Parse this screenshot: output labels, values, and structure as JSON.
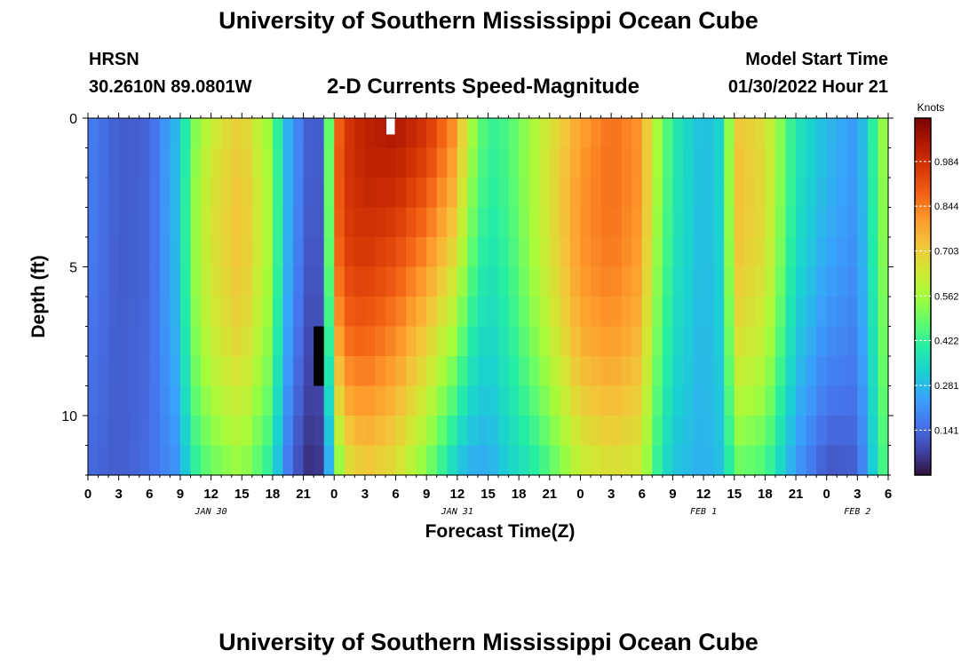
{
  "page": {
    "title": "University of Southern Mississippi Ocean Cube",
    "footer_title": "University of Southern Mississippi Ocean Cube",
    "station": "HRSN",
    "coords": "30.2610N  89.0801W",
    "subtitle": "2-D Currents Speed-Magnitude",
    "model_label": "Model Start Time",
    "model_time": "01/30/2022 Hour 21"
  },
  "colors": {
    "ramp": [
      "#30123b",
      "#4145ab",
      "#4675ed",
      "#39a2fc",
      "#1bcfd4",
      "#24eca6",
      "#61fc6c",
      "#a4fc3b",
      "#d1e834",
      "#f3c63a",
      "#fe9b2d",
      "#f36315",
      "#d93806",
      "#b11901",
      "#7a0402"
    ]
  },
  "chart_data": {
    "type": "heatmap",
    "title": "2-D Currents Speed-Magnitude",
    "xlabel": "Forecast Time(Z)",
    "ylabel": "Depth (ft)",
    "colorbar_label": "Knots",
    "color_range": [
      0.0,
      1.12
    ],
    "colorbar_ticks": [
      0.141,
      0.281,
      0.422,
      0.562,
      0.703,
      0.844,
      0.984
    ],
    "y_range": [
      0,
      12
    ],
    "y_ticks": [
      0,
      5,
      10
    ],
    "x_range_hours": [
      0,
      78
    ],
    "x_tick_hours": [
      0,
      3,
      6,
      9,
      12,
      15,
      18,
      21,
      24,
      27,
      30,
      33,
      36,
      39,
      42,
      45,
      48,
      51,
      54,
      57,
      60,
      63,
      66,
      69,
      72,
      75,
      78
    ],
    "x_tick_labels": [
      "0",
      "3",
      "6",
      "9",
      "12",
      "15",
      "18",
      "21",
      "0",
      "3",
      "6",
      "9",
      "12",
      "15",
      "18",
      "21",
      "0",
      "3",
      "6",
      "9",
      "12",
      "15",
      "18",
      "21",
      "0",
      "3",
      "6"
    ],
    "date_labels": [
      {
        "text": "JAN 30",
        "hour": 12
      },
      {
        "text": "JAN 31",
        "hour": 36
      },
      {
        "text": "FEB 1",
        "hour": 60
      },
      {
        "text": "FEB 2",
        "hour": 75
      }
    ],
    "time_step_hours": 1,
    "depth_rows": 12,
    "profile_times": [
      0,
      3,
      6,
      9,
      10,
      12,
      15,
      18,
      19,
      21,
      22,
      23,
      24,
      25,
      27,
      30,
      33,
      36,
      37,
      39,
      41,
      44,
      48,
      51,
      54,
      55,
      57,
      60,
      62,
      63,
      66,
      69,
      72,
      75,
      78
    ],
    "surface_speed": [
      0.18,
      0.12,
      0.13,
      0.3,
      0.48,
      0.62,
      0.7,
      0.52,
      0.3,
      0.15,
      0.1,
      0.14,
      0.82,
      0.95,
      1.02,
      1.05,
      0.98,
      0.8,
      0.6,
      0.42,
      0.45,
      0.6,
      0.78,
      0.86,
      0.8,
      0.62,
      0.4,
      0.28,
      0.35,
      0.72,
      0.66,
      0.38,
      0.28,
      0.22,
      0.6
    ],
    "bottom_speed": [
      0.14,
      0.12,
      0.15,
      0.22,
      0.38,
      0.48,
      0.54,
      0.38,
      0.2,
      0.06,
      0.03,
      0.08,
      0.4,
      0.62,
      0.7,
      0.65,
      0.5,
      0.3,
      0.25,
      0.25,
      0.32,
      0.4,
      0.6,
      0.65,
      0.62,
      0.45,
      0.3,
      0.26,
      0.3,
      0.48,
      0.44,
      0.22,
      0.1,
      0.12,
      0.5
    ],
    "mid_peak": [
      0,
      0,
      0,
      0.02,
      0.05,
      0.06,
      0.06,
      0.05,
      0.02,
      0,
      0,
      0,
      0.08,
      0.05,
      0.0,
      -0.06,
      -0.08,
      -0.06,
      -0.04,
      -0.02,
      0,
      0.03,
      0.06,
      0.03,
      0.02,
      0,
      0,
      0,
      0,
      0.05,
      0.04,
      0,
      0,
      0,
      0
    ],
    "missing_cells": [
      {
        "hour": 22,
        "depth_rows": [
          7,
          8
        ]
      }
    ],
    "white_marker": {
      "hour": 29,
      "depth_rows": [
        0
      ]
    }
  }
}
